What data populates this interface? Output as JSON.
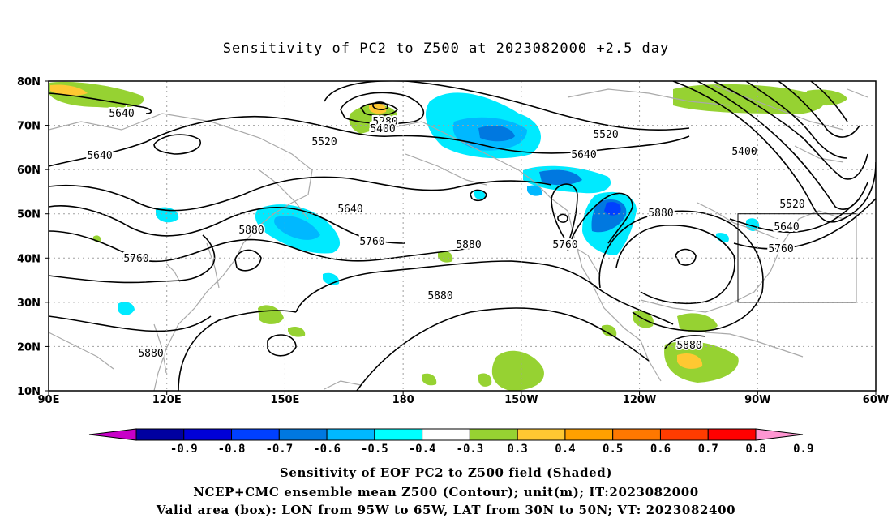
{
  "title": "Sensitivity of PC2 to Z500 at 2023082000 +2.5 day",
  "map": {
    "lat_labels": [
      "80N",
      "70N",
      "60N",
      "50N",
      "40N",
      "30N",
      "20N",
      "10N"
    ],
    "lon_labels": [
      "90E",
      "120E",
      "150E",
      "180",
      "150W",
      "120W",
      "90W",
      "60W"
    ],
    "contour_labels": [
      "5640",
      "5280",
      "5400",
      "5520",
      "5640",
      "5520",
      "5640",
      "5400",
      "5640",
      "5880",
      "5520",
      "5640",
      "5760",
      "5880",
      "5760",
      "5880",
      "5760",
      "5880",
      "5880",
      "5880"
    ],
    "valid_box": {
      "lon_min": -95,
      "lon_max": -65,
      "lat_min": 30,
      "lat_max": 50
    }
  },
  "colorbar": {
    "labels": [
      "-0.9",
      "-0.8",
      "-0.7",
      "-0.6",
      "-0.5",
      "-0.4",
      "-0.3",
      "0.3",
      "0.4",
      "0.5",
      "0.6",
      "0.7",
      "0.8",
      "0.9"
    ],
    "colors": [
      "#c800c8",
      "#0000a0",
      "#0000d8",
      "#0040ff",
      "#0078e0",
      "#00b8ff",
      "#00ffff",
      "#ffffff",
      "#96d232",
      "#ffc832",
      "#ffa000",
      "#ff7800",
      "#ff3c00",
      "#ff0000",
      "#ff96d2"
    ]
  },
  "captions": [
    "Sensitivity of EOF PC2 to Z500 field (Shaded)",
    "NCEP+CMC ensemble mean Z500 (Contour); unit(m); IT:2023082000",
    "Valid area (box): LON from 95W to 65W, LAT from 30N to 50N; VT: 2023082400"
  ]
}
